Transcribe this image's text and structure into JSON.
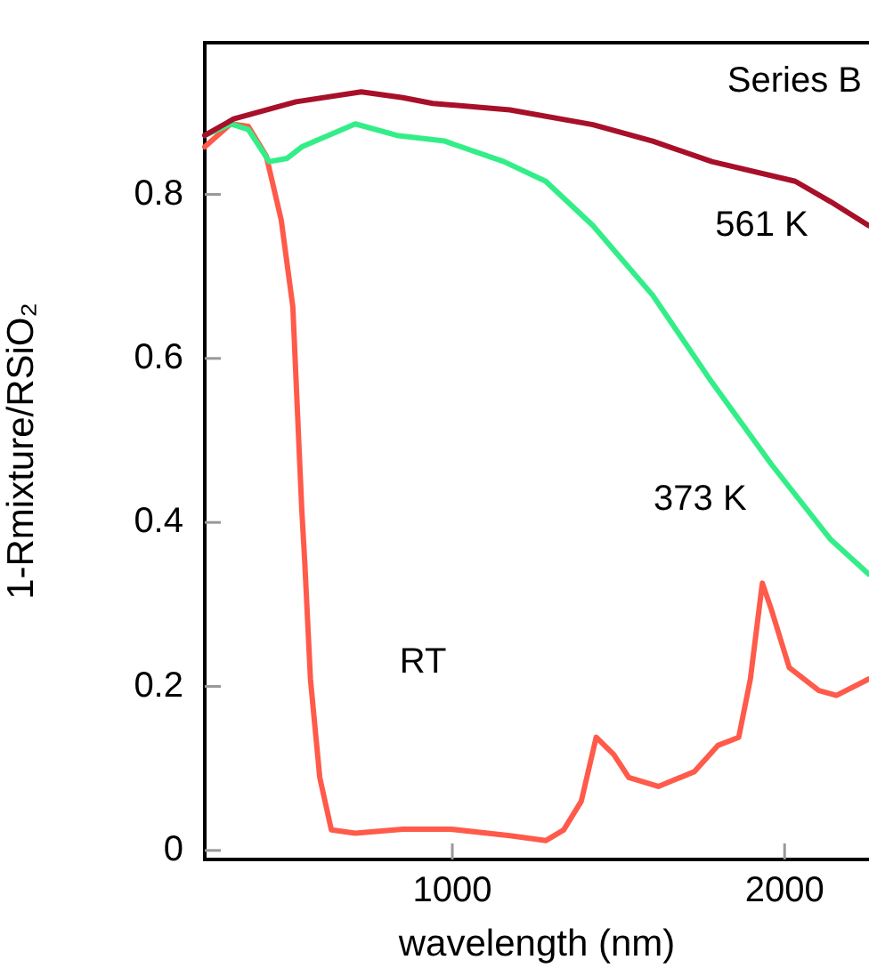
{
  "chart_data": {
    "type": "line",
    "xlabel": "wavelength (nm)",
    "ylabel": "1-Rmixture/RSiO₂",
    "annotations": [
      "Series B"
    ],
    "xlim": [
      255,
      2254
    ],
    "ylim": [
      -0.011,
      0.985
    ],
    "xticks": [
      1000,
      2000
    ],
    "yticks": [
      0,
      0.2,
      0.4,
      0.6,
      0.8
    ],
    "grid": false,
    "legend": false,
    "marker": "none",
    "line_style": "solid",
    "series": [
      {
        "name": "561 K",
        "color": "#a8102a",
        "x": [
          255,
          342,
          530,
          726,
          851,
          941,
          1173,
          1423,
          1603,
          1781,
          2032,
          2139,
          2253
        ],
        "values": [
          0.872,
          0.892,
          0.913,
          0.925,
          0.918,
          0.911,
          0.903,
          0.885,
          0.865,
          0.84,
          0.816,
          0.791,
          0.762
        ]
      },
      {
        "name": "373 K",
        "color": "#33ee88",
        "x": [
          255,
          333,
          386,
          449,
          503,
          547,
          708,
          833,
          977,
          1155,
          1281,
          1423,
          1603,
          1781,
          1960,
          2139,
          2253
        ],
        "values": [
          0.872,
          0.886,
          0.879,
          0.84,
          0.844,
          0.858,
          0.886,
          0.872,
          0.865,
          0.84,
          0.816,
          0.762,
          0.677,
          0.571,
          0.471,
          0.379,
          0.337
        ]
      },
      {
        "name": "RT",
        "color": "#ff5a4a",
        "x": [
          255,
          333,
          386,
          440,
          485,
          520,
          547,
          556,
          573,
          601,
          636,
          708,
          851,
          994,
          1173,
          1281,
          1335,
          1388,
          1433,
          1486,
          1531,
          1620,
          1728,
          1799,
          1862,
          1897,
          1933,
          1960,
          2014,
          2103,
          2156,
          2253
        ],
        "values": [
          0.858,
          0.886,
          0.883,
          0.847,
          0.769,
          0.663,
          0.415,
          0.351,
          0.209,
          0.089,
          0.025,
          0.021,
          0.026,
          0.026,
          0.018,
          0.012,
          0.025,
          0.06,
          0.138,
          0.117,
          0.089,
          0.078,
          0.096,
          0.128,
          0.138,
          0.209,
          0.326,
          0.294,
          0.223,
          0.195,
          0.189,
          0.209
        ]
      }
    ]
  }
}
